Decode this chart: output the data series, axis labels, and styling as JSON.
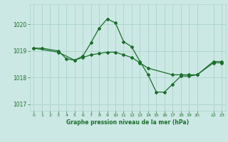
{
  "title": "Graphe pression niveau de la mer (hPa)",
  "background_color": "#cce8e4",
  "grid_color": "#aad4cc",
  "line_color": "#1a6e2a",
  "marker_color": "#1a6e2a",
  "xlim": [
    -0.5,
    23.5
  ],
  "ylim": [
    1016.75,
    1020.75
  ],
  "yticks": [
    1017,
    1018,
    1019,
    1020
  ],
  "xticks": [
    0,
    1,
    2,
    3,
    4,
    5,
    6,
    7,
    8,
    9,
    10,
    11,
    12,
    13,
    14,
    15,
    16,
    17,
    18,
    19,
    20,
    22,
    23
  ],
  "line1_x": [
    0,
    1,
    3,
    4,
    5,
    6,
    7,
    8,
    9,
    10,
    11,
    12,
    13,
    14,
    15,
    16,
    17,
    18,
    19,
    20,
    22,
    23
  ],
  "line1_y": [
    1019.1,
    1019.1,
    1019.0,
    1018.7,
    1018.65,
    1018.8,
    1019.3,
    1019.85,
    1020.2,
    1020.05,
    1019.35,
    1019.15,
    1018.6,
    1018.1,
    1017.45,
    1017.45,
    1017.75,
    1018.05,
    1018.05,
    1018.1,
    1018.6,
    1018.6
  ],
  "line2_x": [
    0,
    3,
    5,
    6,
    7,
    8,
    9,
    10,
    11,
    12,
    13,
    14,
    17,
    18,
    19,
    20,
    22,
    23
  ],
  "line2_y": [
    1019.1,
    1018.95,
    1018.65,
    1018.75,
    1018.85,
    1018.9,
    1018.95,
    1018.95,
    1018.85,
    1018.75,
    1018.55,
    1018.35,
    1018.1,
    1018.1,
    1018.1,
    1018.1,
    1018.55,
    1018.55
  ],
  "figsize": [
    3.2,
    2.0
  ],
  "dpi": 100
}
